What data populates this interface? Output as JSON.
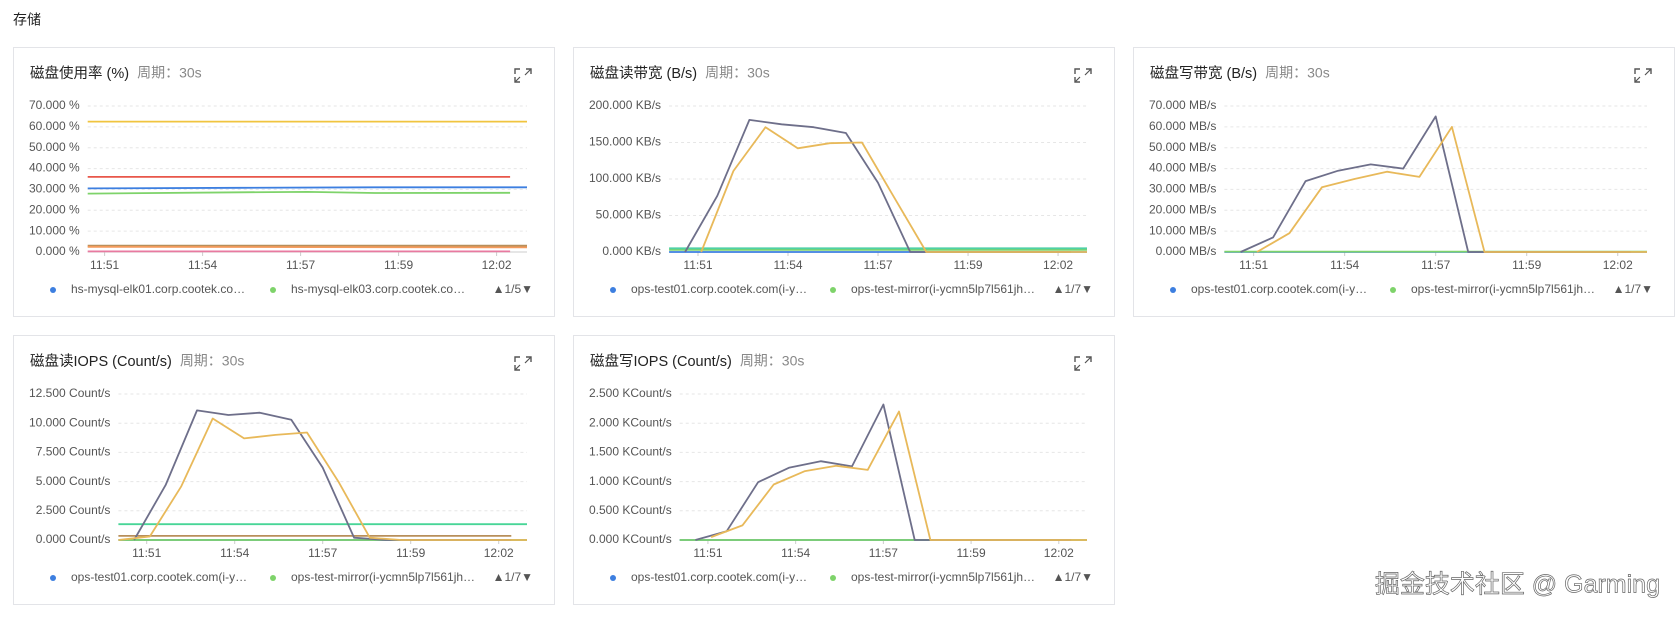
{
  "section_title": "存储",
  "watermark": "掘金技术社区 @ Garming",
  "chart_data": [
    {
      "type": "line",
      "title": "磁盘使用率 (%)",
      "subtitle": "周期：30s",
      "grid": true,
      "legend_pager": "▲1/5▼",
      "xlim": [
        -0.5,
        12.5
      ],
      "xticks": [
        {
          "value": 0,
          "label": "11:51"
        },
        {
          "value": 2.9,
          "label": "11:54"
        },
        {
          "value": 5.8,
          "label": "11:57"
        },
        {
          "value": 8.7,
          "label": "11:59"
        },
        {
          "value": 11.6,
          "label": "12:02"
        }
      ],
      "ylim": [
        0,
        70
      ],
      "yticks": [
        {
          "value": 0,
          "label": "0.000 %"
        },
        {
          "value": 10,
          "label": "10.000 %"
        },
        {
          "value": 20,
          "label": "20.000 %"
        },
        {
          "value": 30,
          "label": "30.000 %"
        },
        {
          "value": 40,
          "label": "40.000 %"
        },
        {
          "value": 50,
          "label": "50.000 %"
        },
        {
          "value": 60,
          "label": "60.000 %"
        },
        {
          "value": 70,
          "label": "70.000 %"
        }
      ],
      "series": [
        {
          "name": "hs-mysql-elk01.corp.cootek.co…",
          "color": "#3d7fe0",
          "x": [
            -0.5,
            4,
            8,
            12.5
          ],
          "values": [
            30.5,
            30.8,
            31,
            31
          ]
        },
        {
          "name": "hs-mysql-elk03.corp.cootek.co…",
          "color": "#7ed36a",
          "x": [
            -0.5,
            4,
            6,
            8,
            12
          ],
          "values": [
            28,
            28.6,
            28.8,
            28.3,
            28.4
          ]
        },
        {
          "color": "#f0c43f",
          "x": [
            -0.5,
            12.5
          ],
          "values": [
            62.5,
            62.5
          ]
        },
        {
          "color": "#e8574a",
          "x": [
            -0.5,
            12
          ],
          "values": [
            36,
            36
          ]
        },
        {
          "color": "#b88f5a",
          "x": [
            -0.5,
            12.5
          ],
          "values": [
            3,
            3
          ]
        },
        {
          "color": "#f49a5b",
          "x": [
            -0.5,
            12.5
          ],
          "values": [
            2.5,
            2.2
          ]
        },
        {
          "color": "#e87aa0",
          "x": [
            -0.5,
            12
          ],
          "values": [
            0.3,
            0.3
          ]
        }
      ]
    },
    {
      "type": "line",
      "title": "磁盘读带宽 (B/s)",
      "subtitle": "周期：30s",
      "grid": true,
      "legend_pager": "▲1/7▼",
      "xlim": [
        -0.5,
        12.5
      ],
      "xticks": [
        {
          "value": 0.4,
          "label": "11:51"
        },
        {
          "value": 3.2,
          "label": "11:54"
        },
        {
          "value": 6.0,
          "label": "11:57"
        },
        {
          "value": 8.8,
          "label": "11:59"
        },
        {
          "value": 11.6,
          "label": "12:02"
        }
      ],
      "ylim": [
        0,
        200
      ],
      "yticks": [
        {
          "value": 0,
          "label": "0.000 KB/s"
        },
        {
          "value": 50,
          "label": "50.000 KB/s"
        },
        {
          "value": 100,
          "label": "100.000 KB/s"
        },
        {
          "value": 150,
          "label": "150.000 KB/s"
        },
        {
          "value": 200,
          "label": "200.000 KB/s"
        }
      ],
      "series": [
        {
          "name": "ops-test01.corp.cootek.com(i-y…",
          "color": "#3d7fe0",
          "x": [
            -0.5,
            12.5
          ],
          "values": [
            0,
            0
          ]
        },
        {
          "name": "ops-test-mirror(i-ycmn5lp7l561jh…",
          "color": "#7ed36a",
          "x": [
            -0.5,
            12.5
          ],
          "values": [
            3,
            3
          ]
        },
        {
          "color": "#4fd1a5",
          "x": [
            -0.5,
            12.5
          ],
          "values": [
            5,
            5
          ]
        },
        {
          "color": "#6e6f8a",
          "x": [
            0,
            1,
            2,
            3,
            4,
            5,
            6,
            7,
            8,
            9,
            10,
            11,
            12
          ],
          "values": [
            0,
            77,
            181,
            175,
            171,
            163,
            95,
            0,
            0,
            0,
            0,
            0,
            0
          ]
        },
        {
          "color": "#e8b95a",
          "x": [
            0.5,
            1.5,
            2.5,
            3.5,
            4.5,
            5.5,
            6.5,
            7.5,
            8.5,
            9.5,
            10.5,
            11.5,
            12.5
          ],
          "values": [
            0,
            111,
            171,
            142,
            149,
            150,
            75,
            0,
            0,
            0,
            0,
            0,
            0
          ]
        }
      ]
    },
    {
      "type": "line",
      "title": "磁盘写带宽 (B/s)",
      "subtitle": "周期：30s",
      "grid": true,
      "legend_pager": "▲1/7▼",
      "xlim": [
        -0.5,
        12.5
      ],
      "xticks": [
        {
          "value": 0.4,
          "label": "11:51"
        },
        {
          "value": 3.2,
          "label": "11:54"
        },
        {
          "value": 6.0,
          "label": "11:57"
        },
        {
          "value": 8.8,
          "label": "11:59"
        },
        {
          "value": 11.6,
          "label": "12:02"
        }
      ],
      "ylim": [
        0,
        70
      ],
      "yticks": [
        {
          "value": 0,
          "label": "0.000 MB/s"
        },
        {
          "value": 10,
          "label": "10.000 MB/s"
        },
        {
          "value": 20,
          "label": "20.000 MB/s"
        },
        {
          "value": 30,
          "label": "30.000 MB/s"
        },
        {
          "value": 40,
          "label": "40.000 MB/s"
        },
        {
          "value": 50,
          "label": "50.000 MB/s"
        },
        {
          "value": 60,
          "label": "60.000 MB/s"
        },
        {
          "value": 70,
          "label": "70.000 MB/s"
        }
      ],
      "series": [
        {
          "name": "ops-test01.corp.cootek.com(i-y…",
          "color": "#3d7fe0",
          "x": [
            -0.5,
            12.5
          ],
          "values": [
            0,
            0
          ]
        },
        {
          "name": "ops-test-mirror(i-ycmn5lp7l561jh…",
          "color": "#7ed36a",
          "x": [
            -0.5,
            12.5
          ],
          "values": [
            0.2,
            0.2
          ]
        },
        {
          "color": "#6e6f8a",
          "x": [
            0,
            1,
            2,
            3,
            4,
            5,
            6,
            7,
            8,
            9,
            10,
            11,
            12
          ],
          "values": [
            0,
            7,
            34,
            39,
            42,
            40,
            65,
            0,
            0,
            0,
            0,
            0,
            0
          ]
        },
        {
          "color": "#e8b95a",
          "x": [
            0.5,
            1.5,
            2.5,
            3.5,
            4.5,
            5.5,
            6.5,
            7.5,
            8.5,
            9.5,
            10.5,
            11.5,
            12.5
          ],
          "values": [
            0,
            9,
            31,
            35,
            38.5,
            36,
            60,
            0,
            0,
            0,
            0,
            0,
            0
          ]
        }
      ]
    },
    {
      "type": "line",
      "title": "磁盘读IOPS (Count/s)",
      "subtitle": "周期：30s",
      "grid": true,
      "legend_pager": "▲1/7▼",
      "xlim": [
        -0.5,
        12.5
      ],
      "xticks": [
        {
          "value": 0.4,
          "label": "11:51"
        },
        {
          "value": 3.2,
          "label": "11:54"
        },
        {
          "value": 6.0,
          "label": "11:57"
        },
        {
          "value": 8.8,
          "label": "11:59"
        },
        {
          "value": 11.6,
          "label": "12:02"
        }
      ],
      "ylim": [
        0,
        12.5
      ],
      "yticks": [
        {
          "value": 0,
          "label": "0.000 Count/s"
        },
        {
          "value": 2.5,
          "label": "2.500 Count/s"
        },
        {
          "value": 5,
          "label": "5.000 Count/s"
        },
        {
          "value": 7.5,
          "label": "7.500 Count/s"
        },
        {
          "value": 10,
          "label": "10.000 Count/s"
        },
        {
          "value": 12.5,
          "label": "12.500 Count/s"
        }
      ],
      "series": [
        {
          "name": "ops-test01.corp.cootek.com(i-y…",
          "color": "#3d7fe0",
          "x": [
            -0.5,
            12.5
          ],
          "values": [
            0,
            0
          ]
        },
        {
          "name": "ops-test-mirror(i-ycmn5lp7l561jh…",
          "color": "#7ed36a",
          "x": [
            -0.5,
            12.5
          ],
          "values": [
            0,
            0
          ]
        },
        {
          "color": "#48d597",
          "x": [
            -0.5,
            12.5
          ],
          "values": [
            1.35,
            1.35
          ]
        },
        {
          "color": "#b88f5a",
          "x": [
            -0.5,
            12
          ],
          "values": [
            0.35,
            0.35
          ]
        },
        {
          "color": "#6e6f8a",
          "x": [
            0,
            1,
            2,
            3,
            4,
            5,
            6,
            7,
            8,
            9,
            10,
            11,
            12
          ],
          "values": [
            0,
            4.7,
            11.1,
            10.7,
            10.9,
            10.3,
            6.2,
            0.2,
            0,
            0,
            0,
            0,
            0
          ]
        },
        {
          "color": "#e8b95a",
          "x": [
            -0.5,
            0.5,
            1.5,
            2.5,
            3.5,
            4.5,
            5.5,
            6.5,
            7.5,
            8.5,
            9.5,
            10.5,
            11.5,
            12.5
          ],
          "values": [
            0,
            0.3,
            4.6,
            10.4,
            8.7,
            9.0,
            9.2,
            5.0,
            0.2,
            0,
            0,
            0,
            0,
            0
          ]
        }
      ]
    },
    {
      "type": "line",
      "title": "磁盘写IOPS (Count/s)",
      "subtitle": "周期：30s",
      "grid": true,
      "legend_pager": "▲1/7▼",
      "xlim": [
        -0.5,
        12.5
      ],
      "xticks": [
        {
          "value": 0.4,
          "label": "11:51"
        },
        {
          "value": 3.2,
          "label": "11:54"
        },
        {
          "value": 6.0,
          "label": "11:57"
        },
        {
          "value": 8.8,
          "label": "11:59"
        },
        {
          "value": 11.6,
          "label": "12:02"
        }
      ],
      "ylim": [
        0,
        2.5
      ],
      "yticks": [
        {
          "value": 0,
          "label": "0.000 KCount/s"
        },
        {
          "value": 0.5,
          "label": "0.500 KCount/s"
        },
        {
          "value": 1,
          "label": "1.000 KCount/s"
        },
        {
          "value": 1.5,
          "label": "1.500 KCount/s"
        },
        {
          "value": 2,
          "label": "2.000 KCount/s"
        },
        {
          "value": 2.5,
          "label": "2.500 KCount/s"
        }
      ],
      "series": [
        {
          "name": "ops-test01.corp.cootek.com(i-y…",
          "color": "#3d7fe0",
          "x": [
            -0.5,
            12.5
          ],
          "values": [
            0,
            0
          ]
        },
        {
          "name": "ops-test-mirror(i-ycmn5lp7l561jh…",
          "color": "#7ed36a",
          "x": [
            -0.5,
            12.5
          ],
          "values": [
            0,
            0
          ]
        },
        {
          "color": "#6e6f8a",
          "x": [
            0,
            1,
            2,
            3,
            4,
            5,
            6,
            7,
            8,
            9,
            10,
            11,
            12
          ],
          "values": [
            0,
            0.15,
            0.99,
            1.24,
            1.35,
            1.26,
            2.32,
            0,
            0,
            0,
            0,
            0,
            0
          ]
        },
        {
          "color": "#e8b95a",
          "x": [
            0.5,
            1.5,
            2.5,
            3.5,
            4.5,
            5.5,
            6.5,
            7.5,
            8.5,
            9.5,
            10.5,
            11.5,
            12.5
          ],
          "values": [
            0.05,
            0.25,
            0.95,
            1.18,
            1.27,
            1.2,
            2.2,
            0,
            0,
            0,
            0,
            0,
            0
          ]
        }
      ]
    }
  ]
}
